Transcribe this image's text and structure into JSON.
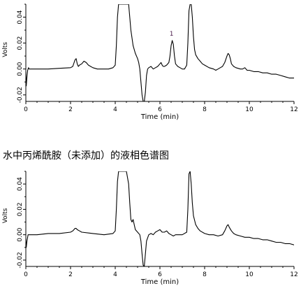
{
  "section_title": "水中丙烯酰胺（未添加）的液相色谱图",
  "chart_data": [
    {
      "type": "line",
      "xlabel": "Time (min)",
      "ylabel": "Volts",
      "xlim": [
        0,
        12
      ],
      "ylim": [
        -0.025,
        0.05
      ],
      "x_ticks": [
        0,
        2,
        4,
        6,
        8,
        10,
        12
      ],
      "x_tick_labels": [
        "0",
        "2",
        "4",
        "6",
        "8",
        "10",
        "12"
      ],
      "y_ticks": [
        -0.02,
        0.0,
        0.02,
        0.04
      ],
      "y_tick_labels": [
        "-0.02",
        "0.00",
        "0.02",
        "0.04"
      ],
      "grid": false,
      "annotations": [
        {
          "x": 6.55,
          "y": 0.023,
          "text": "1"
        }
      ],
      "series": [
        {
          "x": [
            0.0,
            0.02,
            0.05,
            0.08,
            0.1,
            0.12,
            0.15,
            0.5,
            1.0,
            1.5,
            2.0,
            2.1,
            2.2,
            2.25,
            2.3,
            2.35,
            2.4,
            2.5,
            2.6,
            2.7,
            2.8,
            2.9,
            3.0,
            3.2,
            3.5,
            3.7,
            3.9,
            4.0,
            4.05,
            4.1,
            4.15,
            4.2,
            4.3,
            4.5,
            4.6,
            4.65,
            4.7,
            4.8,
            4.9,
            5.0,
            5.05,
            5.1,
            5.15,
            5.2,
            5.25,
            5.3,
            5.35,
            5.4,
            5.45,
            5.5,
            5.6,
            5.7,
            5.8,
            5.9,
            6.0,
            6.05,
            6.1,
            6.15,
            6.2,
            6.3,
            6.4,
            6.45,
            6.5,
            6.55,
            6.6,
            6.65,
            6.7,
            6.8,
            6.9,
            7.0,
            7.1,
            7.2,
            7.25,
            7.3,
            7.35,
            7.4,
            7.45,
            7.5,
            7.55,
            7.6,
            7.7,
            7.8,
            7.9,
            8.0,
            8.2,
            8.4,
            8.5,
            8.6,
            8.7,
            8.8,
            8.9,
            9.0,
            9.05,
            9.1,
            9.15,
            9.2,
            9.3,
            9.4,
            9.6,
            9.7,
            9.8,
            9.9,
            10.0,
            10.2,
            10.4,
            10.6,
            10.8,
            11.0,
            11.2,
            11.4,
            11.6,
            11.8,
            12.0
          ],
          "y": [
            -0.002,
            -0.013,
            -0.006,
            -0.001,
            0.0,
            0.001,
            0.0,
            0.0,
            0.0,
            0.0005,
            0.001,
            0.002,
            0.007,
            0.008,
            0.004,
            0.002,
            0.003,
            0.004,
            0.006,
            0.005,
            0.003,
            0.002,
            0.001,
            0.0,
            0.0,
            0.0,
            0.001,
            0.003,
            0.018,
            0.04,
            0.05,
            0.05,
            0.05,
            0.05,
            0.05,
            0.04,
            0.03,
            0.018,
            0.012,
            0.008,
            0.005,
            0.0,
            -0.01,
            -0.02,
            -0.025,
            -0.025,
            -0.018,
            -0.005,
            0.0,
            0.001,
            0.002,
            0.0,
            0.001,
            0.002,
            0.004,
            0.005,
            0.003,
            0.002,
            0.002,
            0.003,
            0.005,
            0.01,
            0.018,
            0.022,
            0.019,
            0.01,
            0.004,
            0.002,
            0.001,
            0.0,
            0.0,
            0.003,
            0.02,
            0.045,
            0.05,
            0.05,
            0.04,
            0.025,
            0.015,
            0.011,
            0.008,
            0.006,
            0.004,
            0.003,
            0.001,
            0.0,
            -0.001,
            0.0,
            0.001,
            0.002,
            0.005,
            0.01,
            0.012,
            0.011,
            0.008,
            0.004,
            0.002,
            0.001,
            0.0,
            0.0,
            0.001,
            -0.001,
            -0.001,
            -0.002,
            -0.002,
            -0.003,
            -0.003,
            -0.004,
            -0.004,
            -0.005,
            -0.006,
            -0.007,
            -0.007
          ]
        }
      ]
    },
    {
      "type": "line",
      "xlabel": "Time (min)",
      "ylabel": "Volts",
      "xlim": [
        0,
        12
      ],
      "ylim": [
        -0.025,
        0.05
      ],
      "x_ticks": [
        0,
        2,
        4,
        6,
        8,
        10,
        12
      ],
      "x_tick_labels": [
        "0",
        "2",
        "4",
        "6",
        "8",
        "10",
        "12"
      ],
      "y_ticks": [
        -0.02,
        0.0,
        0.02,
        0.04
      ],
      "y_tick_labels": [
        "-0.02",
        "0.00",
        "0.02",
        "0.04"
      ],
      "grid": false,
      "annotations": [],
      "series": [
        {
          "x": [
            0.0,
            0.02,
            0.05,
            0.1,
            0.5,
            1.0,
            1.5,
            2.0,
            2.1,
            2.2,
            2.25,
            2.3,
            2.4,
            2.5,
            3.0,
            3.5,
            3.9,
            4.0,
            4.05,
            4.1,
            4.15,
            4.2,
            4.3,
            4.5,
            4.6,
            4.65,
            4.7,
            4.75,
            4.8,
            4.85,
            4.9,
            5.0,
            5.1,
            5.15,
            5.2,
            5.25,
            5.3,
            5.35,
            5.4,
            5.5,
            5.6,
            5.7,
            5.8,
            5.9,
            6.0,
            6.05,
            6.1,
            6.2,
            6.3,
            6.35,
            6.4,
            6.5,
            6.6,
            6.7,
            6.8,
            7.0,
            7.2,
            7.25,
            7.3,
            7.35,
            7.4,
            7.45,
            7.5,
            7.6,
            7.7,
            7.8,
            8.0,
            8.2,
            8.4,
            8.6,
            8.8,
            8.9,
            9.0,
            9.05,
            9.1,
            9.2,
            9.3,
            9.4,
            9.6,
            9.8,
            10.0,
            10.2,
            10.4,
            10.6,
            10.8,
            11.0,
            11.2,
            11.4,
            11.6,
            11.8,
            12.0
          ],
          "y": [
            -0.003,
            -0.01,
            -0.005,
            0.0,
            0.0,
            0.001,
            0.001,
            0.002,
            0.003,
            0.005,
            0.005,
            0.004,
            0.003,
            0.002,
            0.001,
            0.0,
            0.001,
            0.003,
            0.02,
            0.042,
            0.05,
            0.05,
            0.05,
            0.05,
            0.04,
            0.025,
            0.012,
            0.01,
            0.012,
            0.008,
            0.004,
            0.002,
            0.0,
            -0.005,
            -0.015,
            -0.024,
            -0.025,
            -0.015,
            -0.005,
            0.0,
            0.001,
            0.0,
            0.002,
            0.003,
            0.004,
            0.003,
            0.002,
            0.002,
            0.003,
            0.002,
            0.001,
            0.0,
            -0.001,
            0.0,
            0.0,
            0.0,
            0.002,
            0.02,
            0.048,
            0.05,
            0.04,
            0.025,
            0.015,
            0.008,
            0.005,
            0.003,
            0.001,
            0.0,
            0.0,
            -0.001,
            0.0,
            0.003,
            0.007,
            0.008,
            0.006,
            0.003,
            0.001,
            0.0,
            -0.001,
            -0.002,
            -0.002,
            -0.003,
            -0.003,
            -0.004,
            -0.004,
            -0.005,
            -0.006,
            -0.006,
            -0.007,
            -0.007,
            -0.008
          ]
        }
      ]
    }
  ]
}
